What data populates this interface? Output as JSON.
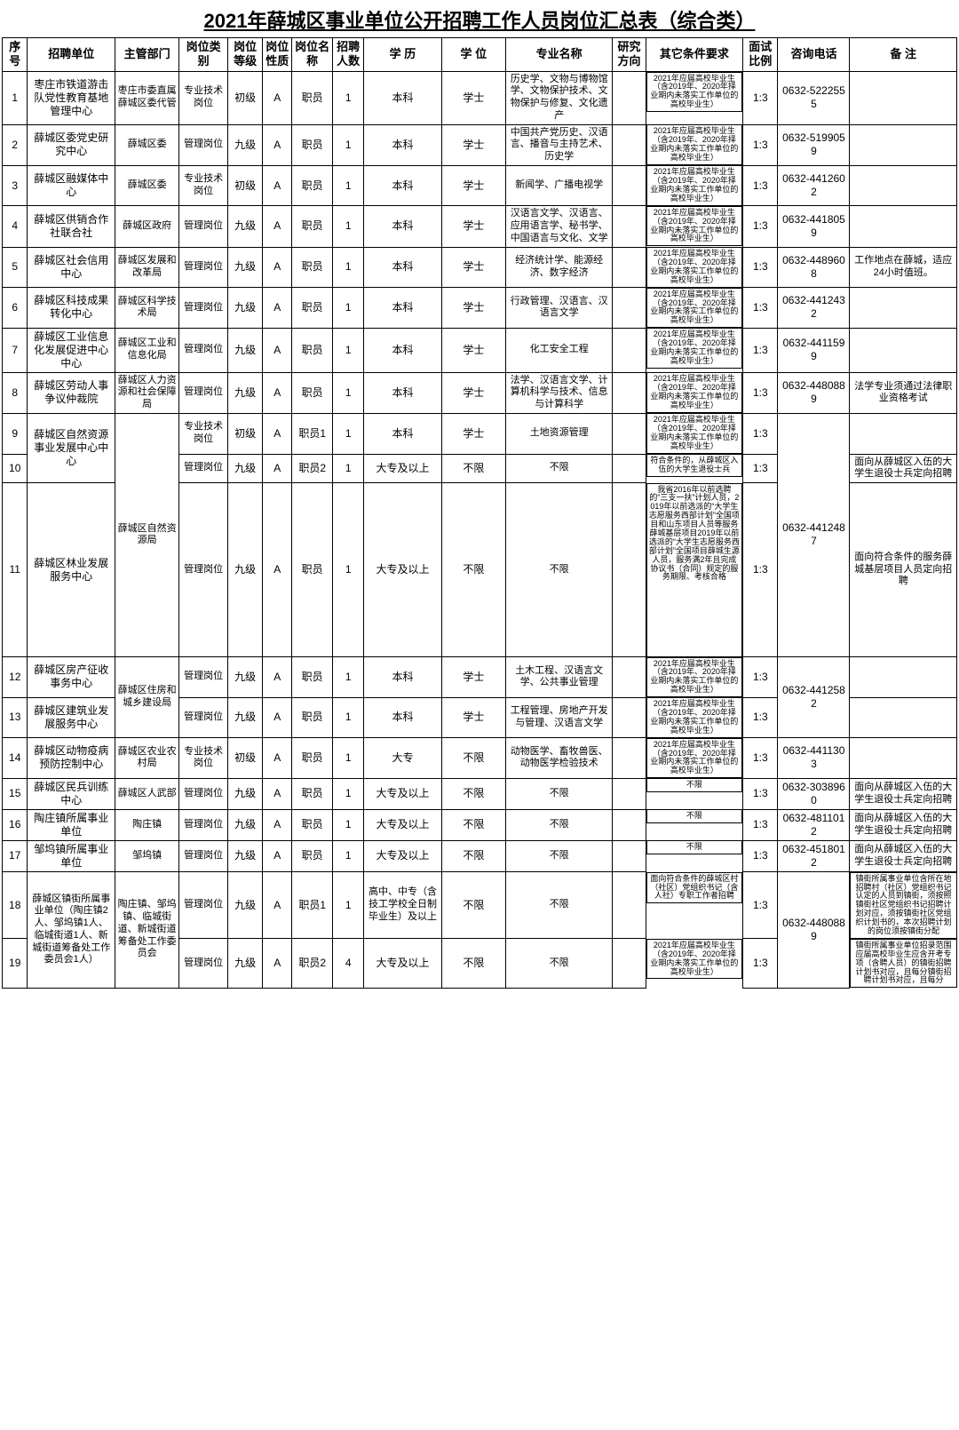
{
  "title": "2021年薛城区事业单位公开招聘工作人员岗位汇总表（综合类）",
  "headers": [
    "序号",
    "招聘单位",
    "主管部门",
    "岗位类别",
    "岗位等级",
    "岗位性质",
    "岗位名称",
    "招聘人数",
    "学 历",
    "学 位",
    "专业名称",
    "研究方向",
    "其它条件要求",
    "面试比例",
    "咨询电话",
    "备 注"
  ],
  "req_std": "2021年应届高校毕业生（含2019年、2020年择业期内未落实工作单位的高校毕业生）",
  "req_vet": "符合条件的，从薛城区入伍的大学生退役士兵",
  "req_row11": "我省2016年以前选聘的“三支一扶”计划人员，2019年以前选派的“大学生志愿服务西部计划”全国项目和山东项目人员等服务薛城基层项目2019年以前选派的“大学生志愿服务西部计划”全国项目薛城生源人员，服务满2年且完成协议书（合同）规定的服务期限、考核合格",
  "req_row18": "面向符合条件的薛城区村（社区）党组织书记（含人社）专职工作者招聘",
  "rows": [
    {
      "n": "1",
      "unit": "枣庄市铁道游击队党性教育基地管理中心",
      "dept": "枣庄市委直属薛城区委代管",
      "cat": "专业技术岗位",
      "lv": "初级",
      "nat": "A",
      "pname": "职员",
      "num": "1",
      "edu": "本科",
      "deg": "学士",
      "maj": "历史学、文物与博物馆学、文物保护技术、文物保护与修复、文化遗产",
      "dir": "",
      "req": "std",
      "ratio": "1:3",
      "tel": "0632-5222555",
      "note": ""
    },
    {
      "n": "2",
      "unit": "薛城区委党史研究中心",
      "dept": "薛城区委",
      "cat": "管理岗位",
      "lv": "九级",
      "nat": "A",
      "pname": "职员",
      "num": "1",
      "edu": "本科",
      "deg": "学士",
      "maj": "中国共产党历史、汉语言、播音与主持艺术、历史学",
      "dir": "",
      "req": "std",
      "ratio": "1:3",
      "tel": "0632-5199059",
      "note": ""
    },
    {
      "n": "3",
      "unit": "薛城区融媒体中心",
      "dept": "薛城区委",
      "cat": "专业技术岗位",
      "lv": "初级",
      "nat": "A",
      "pname": "职员",
      "num": "1",
      "edu": "本科",
      "deg": "学士",
      "maj": "新闻学、广播电视学",
      "dir": "",
      "req": "std",
      "ratio": "1:3",
      "tel": "0632-4412602",
      "note": ""
    },
    {
      "n": "4",
      "unit": "薛城区供销合作社联合社",
      "dept": "薛城区政府",
      "cat": "管理岗位",
      "lv": "九级",
      "nat": "A",
      "pname": "职员",
      "num": "1",
      "edu": "本科",
      "deg": "学士",
      "maj": "汉语言文学、汉语言、应用语言学、秘书学、中国语言与文化、文学",
      "dir": "",
      "req": "std",
      "ratio": "1:3",
      "tel": "0632-4418059",
      "note": ""
    },
    {
      "n": "5",
      "unit": "薛城区社会信用中心",
      "dept": "薛城区发展和改革局",
      "cat": "管理岗位",
      "lv": "九级",
      "nat": "A",
      "pname": "职员",
      "num": "1",
      "edu": "本科",
      "deg": "学士",
      "maj": "经济统计学、能源经济、数字经济",
      "dir": "",
      "req": "std",
      "ratio": "1:3",
      "tel": "0632-4489608",
      "note": "工作地点在薛城，适应24小时值班。"
    },
    {
      "n": "6",
      "unit": "薛城区科技成果转化中心",
      "dept": "薛城区科学技术局",
      "cat": "管理岗位",
      "lv": "九级",
      "nat": "A",
      "pname": "职员",
      "num": "1",
      "edu": "本科",
      "deg": "学士",
      "maj": "行政管理、汉语言、汉语言文学",
      "dir": "",
      "req": "std",
      "ratio": "1:3",
      "tel": "0632-4412432",
      "note": ""
    },
    {
      "n": "7",
      "unit": "薛城区工业信息化发展促进中心中心",
      "dept": "薛城区工业和信息化局",
      "cat": "管理岗位",
      "lv": "九级",
      "nat": "A",
      "pname": "职员",
      "num": "1",
      "edu": "本科",
      "deg": "学士",
      "maj": "化工安全工程",
      "dir": "",
      "req": "std",
      "ratio": "1:3",
      "tel": "0632-4411599",
      "note": ""
    },
    {
      "n": "8",
      "unit": "薛城区劳动人事争议仲裁院",
      "dept": "薛城区人力资源和社会保障局",
      "cat": "管理岗位",
      "lv": "九级",
      "nat": "A",
      "pname": "职员",
      "num": "1",
      "edu": "本科",
      "deg": "学士",
      "maj": "法学、汉语言文学、计算机科学与技术、信息与计算科学",
      "dir": "",
      "req": "std",
      "ratio": "1:3",
      "tel": "0632-4480889",
      "note": "法学专业须通过法律职业资格考试"
    }
  ],
  "row9": {
    "n": "9",
    "unit": "薛城区自然资源事业发展中心中心",
    "cat": "专业技术岗位",
    "lv": "初级",
    "nat": "A",
    "pname": "职员1",
    "num": "1",
    "edu": "本科",
    "deg": "学士",
    "maj": "土地资源管理",
    "dir": "",
    "req": "std",
    "ratio": "1:3",
    "note": ""
  },
  "row10": {
    "n": "10",
    "cat": "管理岗位",
    "lv": "九级",
    "nat": "A",
    "pname": "职员2",
    "num": "1",
    "edu": "大专及以上",
    "deg": "不限",
    "maj": "不限",
    "dir": "",
    "req": "vet",
    "ratio": "1:3",
    "note": "面向从薛城区入伍的大学生退役士兵定向招聘"
  },
  "row11": {
    "n": "11",
    "unit": "薛城区林业发展服务中心",
    "dept": "薛城区自然资源局",
    "tel": "0632-4412487",
    "cat": "管理岗位",
    "lv": "九级",
    "nat": "A",
    "pname": "职员",
    "num": "1",
    "edu": "大专及以上",
    "deg": "不限",
    "maj": "不限",
    "dir": "",
    "ratio": "1:3",
    "note": "面向符合条件的服务薛城基层项目人员定向招聘"
  },
  "row12": {
    "n": "12",
    "unit": "薛城区房产征收事务中心",
    "cat": "管理岗位",
    "lv": "九级",
    "nat": "A",
    "pname": "职员",
    "num": "1",
    "edu": "本科",
    "deg": "学士",
    "maj": "土木工程、汉语言文学、公共事业管理",
    "dir": "",
    "req": "std",
    "ratio": "1:3",
    "note": ""
  },
  "row13": {
    "n": "13",
    "unit": "薛城区建筑业发展服务中心",
    "dept": "薛城区住房和城乡建设局",
    "tel": "0632-4412582",
    "cat": "管理岗位",
    "lv": "九级",
    "nat": "A",
    "pname": "职员",
    "num": "1",
    "edu": "本科",
    "deg": "学士",
    "maj": "工程管理、房地产开发与管理、汉语言文学",
    "dir": "",
    "req": "std",
    "ratio": "1:3",
    "note": ""
  },
  "row14": {
    "n": "14",
    "unit": "薛城区动物疫病预防控制中心",
    "dept": "薛城区农业农村局",
    "cat": "专业技术岗位",
    "lv": "初级",
    "nat": "A",
    "pname": "职员",
    "num": "1",
    "edu": "大专",
    "deg": "不限",
    "maj": "动物医学、畜牧兽医、动物医学检验技术",
    "dir": "",
    "req": "std",
    "ratio": "1:3",
    "tel": "0632-4411303",
    "note": ""
  },
  "row15": {
    "n": "15",
    "unit": "薛城区民兵训练中心",
    "dept": "薛城区人武部",
    "cat": "管理岗位",
    "lv": "九级",
    "nat": "A",
    "pname": "职员",
    "num": "1",
    "edu": "大专及以上",
    "deg": "不限",
    "maj": "不限",
    "dir": "",
    "req": "不限",
    "ratio": "1:3",
    "tel": "0632-3038960",
    "note": "面向从薛城区入伍的大学生退役士兵定向招聘"
  },
  "row16": {
    "n": "16",
    "unit": "陶庄镇所属事业单位",
    "dept": "陶庄镇",
    "cat": "管理岗位",
    "lv": "九级",
    "nat": "A",
    "pname": "职员",
    "num": "1",
    "edu": "大专及以上",
    "deg": "不限",
    "maj": "不限",
    "dir": "",
    "req": "不限",
    "ratio": "1:3",
    "tel": "0632-4811012",
    "note": "面向从薛城区入伍的大学生退役士兵定向招聘"
  },
  "row17": {
    "n": "17",
    "unit": "邹坞镇所属事业单位",
    "dept": "邹坞镇",
    "cat": "管理岗位",
    "lv": "九级",
    "nat": "A",
    "pname": "职员",
    "num": "1",
    "edu": "大专及以上",
    "deg": "不限",
    "maj": "不限",
    "dir": "",
    "req": "不限",
    "ratio": "1:3",
    "tel": "0632-4518012",
    "note": "面向从薛城区入伍的大学生退役士兵定向招聘"
  },
  "row18": {
    "n": "18",
    "unit": "薛城区镇街所属事业单位（陶庄镇2人、邹坞镇1人、临城街道1人、新城街道筹备处工作委员会1人）",
    "dept": "陶庄镇、邹坞镇、临城街道、新城街道筹备处工作委员会",
    "tel": "0632-4480889",
    "cat": "管理岗位",
    "lv": "九级",
    "nat": "A",
    "pname": "职员1",
    "num": "1",
    "edu": "高中、中专（含技工学校全日制毕业生）及以上",
    "deg": "不限",
    "maj": "不限",
    "dir": "",
    "ratio": "1:3",
    "note": "镇街所属事业单位含所在地招聘村（社区）党组织书记认定的人员到镇街，须按照镇街社区党组织书记招聘计划对应，须按镇街社区党组织计划书的，本次招聘计划的岗位须按镇街分配"
  },
  "row19": {
    "n": "19",
    "cat": "管理岗位",
    "lv": "九级",
    "nat": "A",
    "pname": "职员2",
    "num": "4",
    "edu": "大专及以上",
    "deg": "不限",
    "maj": "不限",
    "dir": "",
    "req": "std",
    "ratio": "1:3",
    "note": "镇街所属事业单位招录范围应届高校毕业生应含开考专项（含聘人员）的镇街招聘计划书对应，且每分镇街招聘计划书对应，且每分"
  }
}
